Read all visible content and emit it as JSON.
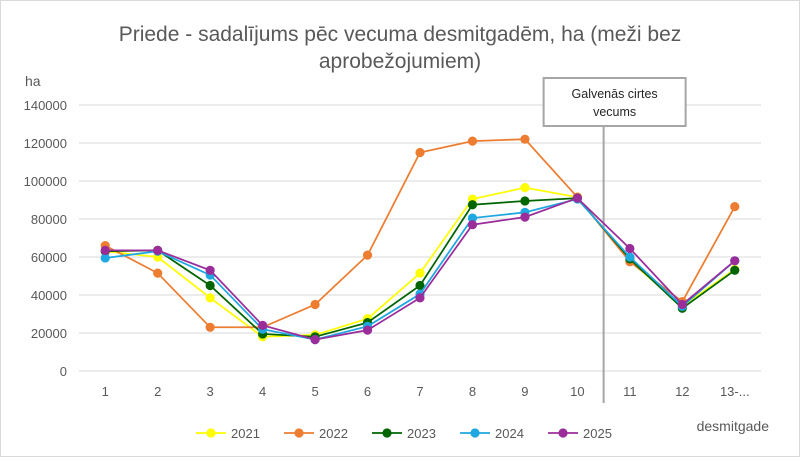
{
  "chart_data": {
    "type": "line",
    "title": "Priede - sadalījums pēc vecuma desmitgadēm, ha (meži bez aprobežojumiem)",
    "title_lines": [
      "Priede - sadalījums pēc vecuma desmitgadēm, ha (meži bez",
      "aprobežojumiem)"
    ],
    "xlabel": "desmitgade",
    "ylabel": "ha",
    "categories": [
      "1",
      "2",
      "3",
      "4",
      "5",
      "6",
      "7",
      "8",
      "9",
      "10",
      "11",
      "12",
      "13-..."
    ],
    "ylim": [
      0,
      140000
    ],
    "yticks": [
      0,
      20000,
      40000,
      60000,
      80000,
      100000,
      120000,
      140000
    ],
    "grid": true,
    "legend_position": "bottom",
    "annotation": {
      "lines": [
        "Galvenās cirtes",
        "vecums"
      ],
      "between_categories": [
        "10",
        "11"
      ]
    },
    "series": [
      {
        "name": "2021",
        "color": "#ffff00",
        "values": [
          63000,
          60000,
          38500,
          18000,
          19000,
          27500,
          51500,
          90500,
          96500,
          91500,
          58000,
          34000,
          53500
        ]
      },
      {
        "name": "2022",
        "color": "#ed7d31",
        "values": [
          66000,
          51500,
          23000,
          23000,
          35000,
          61000,
          115000,
          121000,
          122000,
          91500,
          57500,
          36500,
          86500
        ]
      },
      {
        "name": "2023",
        "color": "#006400",
        "values": [
          63000,
          63500,
          45000,
          19500,
          18000,
          25500,
          45000,
          87500,
          89500,
          91000,
          59000,
          33000,
          53000
        ]
      },
      {
        "name": "2024",
        "color": "#1ea7e1",
        "values": [
          59500,
          63000,
          50500,
          22000,
          16500,
          23500,
          40500,
          80500,
          83500,
          90500,
          60000,
          34000,
          58000
        ]
      },
      {
        "name": "2025",
        "color": "#9b2d9b",
        "values": [
          63500,
          63500,
          53000,
          24000,
          16500,
          21500,
          38500,
          77000,
          81000,
          91000,
          64500,
          35000,
          58000
        ]
      }
    ]
  }
}
